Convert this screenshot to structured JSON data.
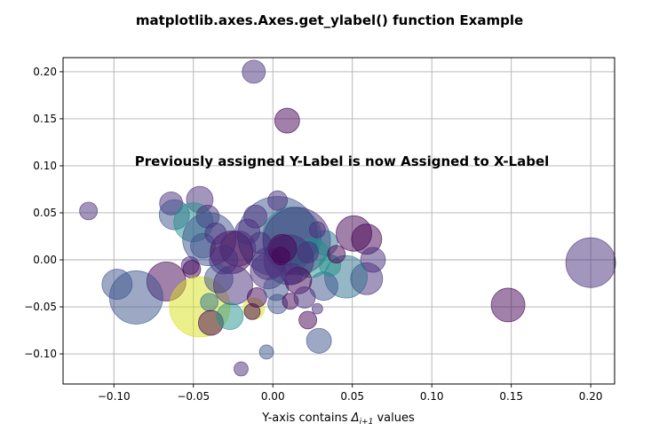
{
  "chart_data": {
    "type": "scatter",
    "title": "matplotlib.axes.Axes.get_ylabel() function Example",
    "xlabel_prefix": "Y-axis contains ",
    "xlabel_symbol": "Δ",
    "xlabel_subscript": "i+1",
    "xlabel_suffix": " values",
    "annotation": "Previously assigned Y-Label is now Assigned to X-Label",
    "xlim": [
      -0.132,
      0.215
    ],
    "ylim": [
      -0.132,
      0.215
    ],
    "xticks": [
      -0.1,
      -0.05,
      0.0,
      0.05,
      0.1,
      0.15,
      0.2
    ],
    "xtick_labels": [
      "−0.10",
      "−0.05",
      "0.00",
      "0.05",
      "0.10",
      "0.15",
      "0.20"
    ],
    "yticks": [
      -0.1,
      -0.05,
      0.0,
      0.05,
      0.1,
      0.15,
      0.2
    ],
    "ytick_labels": [
      "−0.10",
      "−0.05",
      "0.00",
      "0.05",
      "0.10",
      "0.15",
      "0.20"
    ],
    "grid": true,
    "alpha": 0.5,
    "colors": {
      "purple": "#440154",
      "indigo": "#472d7b",
      "blue": "#3b528b",
      "steel": "#2c728e",
      "teal": "#21918c",
      "green": "#27ad81",
      "lime": "#5ec962",
      "yellow": "#d8e219",
      "grid": "#b0b0b0",
      "axis": "#000000"
    },
    "points": [
      {
        "x": -0.012,
        "y": 0.2,
        "s": 13,
        "c": "indigo"
      },
      {
        "x": 0.009,
        "y": 0.148,
        "s": 14,
        "c": "purple"
      },
      {
        "x": -0.116,
        "y": 0.052,
        "s": 10,
        "c": "indigo"
      },
      {
        "x": -0.064,
        "y": 0.06,
        "s": 13,
        "c": "indigo"
      },
      {
        "x": -0.062,
        "y": 0.048,
        "s": 17,
        "c": "blue"
      },
      {
        "x": -0.046,
        "y": 0.064,
        "s": 15,
        "c": "indigo"
      },
      {
        "x": -0.05,
        "y": 0.04,
        "s": 22,
        "c": "teal"
      },
      {
        "x": -0.041,
        "y": 0.046,
        "s": 13,
        "c": "indigo"
      },
      {
        "x": -0.04,
        "y": 0.022,
        "s": 30,
        "c": "blue"
      },
      {
        "x": -0.044,
        "y": 0.015,
        "s": 14,
        "c": "blue"
      },
      {
        "x": 0.003,
        "y": 0.025,
        "s": 45,
        "c": "blue"
      },
      {
        "x": 0.012,
        "y": 0.025,
        "s": 33,
        "c": "teal"
      },
      {
        "x": 0.015,
        "y": 0.02,
        "s": 38,
        "c": "indigo"
      },
      {
        "x": 0.033,
        "y": 0.018,
        "s": 14,
        "c": "steel"
      },
      {
        "x": 0.051,
        "y": 0.028,
        "s": 20,
        "c": "purple"
      },
      {
        "x": 0.059,
        "y": 0.022,
        "s": 17,
        "c": "purple"
      },
      {
        "x": 0.063,
        "y": 0.0,
        "s": 14,
        "c": "indigo"
      },
      {
        "x": 0.059,
        "y": -0.02,
        "s": 18,
        "c": "indigo"
      },
      {
        "x": 0.046,
        "y": -0.018,
        "s": 24,
        "c": "steel"
      },
      {
        "x": 0.032,
        "y": -0.028,
        "s": 16,
        "c": "blue"
      },
      {
        "x": 0.003,
        "y": 0.063,
        "s": 11,
        "c": "indigo"
      },
      {
        "x": -0.011,
        "y": 0.046,
        "s": 13,
        "c": "indigo"
      },
      {
        "x": 0.024,
        "y": 0.002,
        "s": 22,
        "c": "teal"
      },
      {
        "x": 0.01,
        "y": 0.0,
        "s": 28,
        "c": "indigo"
      },
      {
        "x": -0.022,
        "y": 0.012,
        "s": 20,
        "c": "indigo"
      },
      {
        "x": -0.026,
        "y": 0.008,
        "s": 24,
        "c": "purple"
      },
      {
        "x": -0.031,
        "y": 0.0,
        "s": 16,
        "c": "indigo"
      },
      {
        "x": -0.052,
        "y": -0.006,
        "s": 10,
        "c": "indigo"
      },
      {
        "x": -0.051,
        "y": -0.01,
        "s": 10,
        "c": "purple"
      },
      {
        "x": -0.067,
        "y": -0.023,
        "s": 22,
        "c": "purple"
      },
      {
        "x": -0.098,
        "y": -0.026,
        "s": 17,
        "c": "blue"
      },
      {
        "x": -0.086,
        "y": -0.04,
        "s": 30,
        "c": "blue"
      },
      {
        "x": -0.046,
        "y": -0.05,
        "s": 34,
        "c": "yellow"
      },
      {
        "x": -0.04,
        "y": -0.045,
        "s": 10,
        "c": "steel"
      },
      {
        "x": -0.039,
        "y": -0.067,
        "s": 14,
        "c": "purple"
      },
      {
        "x": -0.034,
        "y": -0.02,
        "s": 16,
        "c": "blue"
      },
      {
        "x": -0.025,
        "y": -0.027,
        "s": 22,
        "c": "indigo"
      },
      {
        "x": -0.027,
        "y": -0.06,
        "s": 15,
        "c": "teal"
      },
      {
        "x": -0.012,
        "y": -0.052,
        "s": 12,
        "c": "yellow"
      },
      {
        "x": -0.013,
        "y": -0.055,
        "s": 9,
        "c": "purple"
      },
      {
        "x": -0.01,
        "y": -0.04,
        "s": 11,
        "c": "purple"
      },
      {
        "x": -0.003,
        "y": -0.012,
        "s": 20,
        "c": "indigo"
      },
      {
        "x": 0.002,
        "y": -0.03,
        "s": 14,
        "c": "blue"
      },
      {
        "x": 0.003,
        "y": -0.047,
        "s": 11,
        "c": "blue"
      },
      {
        "x": 0.011,
        "y": -0.044,
        "s": 9,
        "c": "purple"
      },
      {
        "x": 0.016,
        "y": -0.022,
        "s": 15,
        "c": "purple"
      },
      {
        "x": 0.02,
        "y": -0.04,
        "s": 12,
        "c": "indigo"
      },
      {
        "x": 0.022,
        "y": -0.064,
        "s": 10,
        "c": "purple"
      },
      {
        "x": 0.029,
        "y": -0.086,
        "s": 14,
        "c": "blue"
      },
      {
        "x": -0.004,
        "y": -0.098,
        "s": 8,
        "c": "blue"
      },
      {
        "x": -0.02,
        "y": -0.116,
        "s": 8,
        "c": "indigo"
      },
      {
        "x": 0.028,
        "y": -0.052,
        "s": 6,
        "c": "indigo"
      },
      {
        "x": 0.036,
        "y": -0.006,
        "s": 12,
        "c": "teal"
      },
      {
        "x": 0.04,
        "y": 0.006,
        "s": 10,
        "c": "purple"
      },
      {
        "x": 0.028,
        "y": 0.032,
        "s": 9,
        "c": "indigo"
      },
      {
        "x": 0.022,
        "y": 0.008,
        "s": 12,
        "c": "indigo"
      },
      {
        "x": -0.003,
        "y": -0.004,
        "s": 18,
        "c": "indigo"
      },
      {
        "x": 0.006,
        "y": 0.012,
        "s": 16,
        "c": "purple"
      },
      {
        "x": -0.016,
        "y": 0.03,
        "s": 14,
        "c": "indigo"
      },
      {
        "x": -0.008,
        "y": 0.018,
        "s": 12,
        "c": "indigo"
      },
      {
        "x": -0.036,
        "y": 0.028,
        "s": 12,
        "c": "indigo"
      },
      {
        "x": 0.012,
        "y": -0.015,
        "s": 12,
        "c": "indigo"
      },
      {
        "x": 0.005,
        "y": 0.004,
        "s": 10,
        "c": "purple"
      },
      {
        "x": 0.148,
        "y": -0.048,
        "s": 19,
        "c": "purple"
      },
      {
        "x": 0.2,
        "y": -0.003,
        "s": 28,
        "c": "indigo"
      }
    ]
  }
}
